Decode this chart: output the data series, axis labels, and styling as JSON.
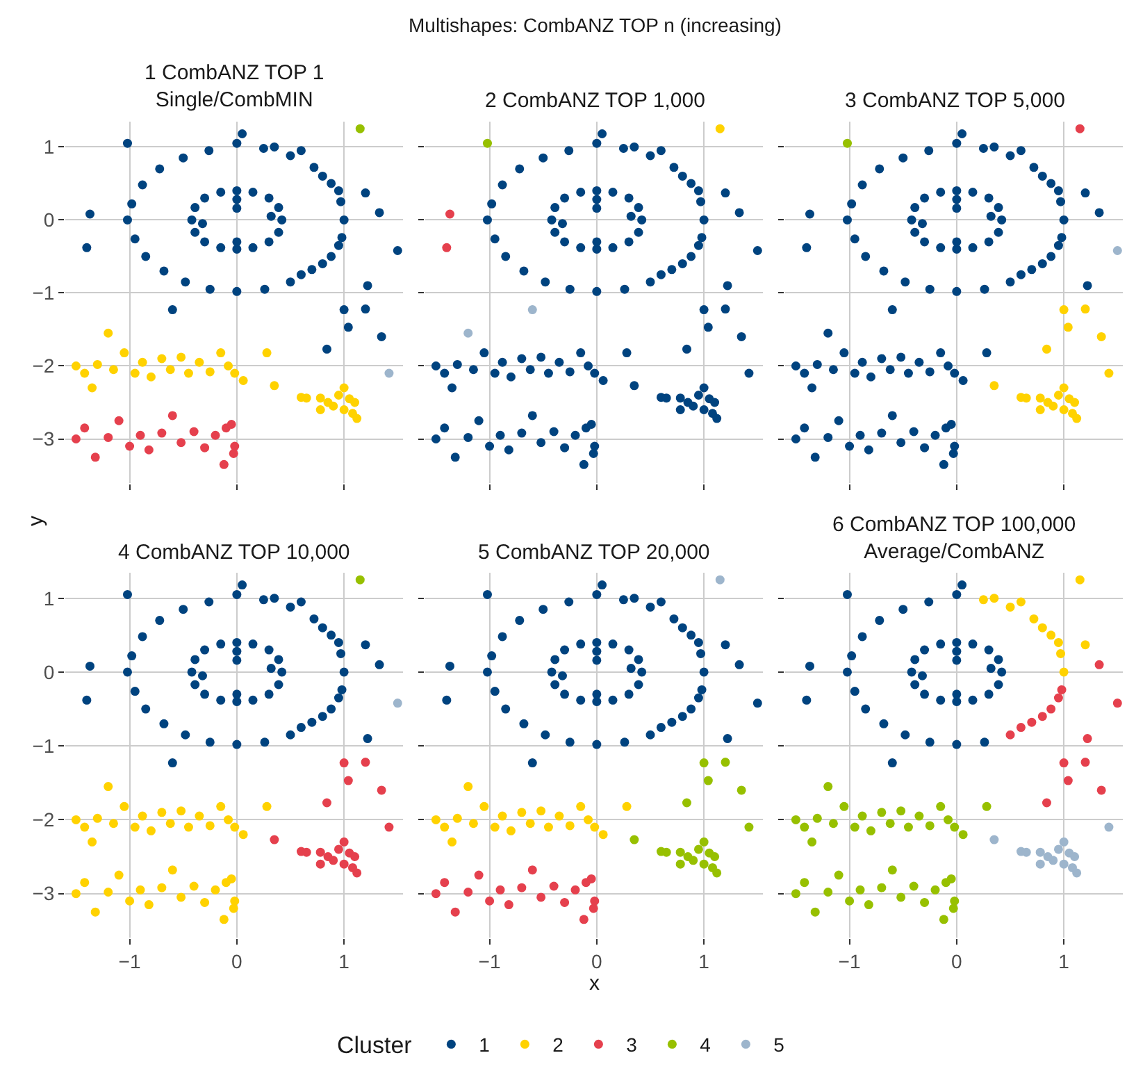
{
  "chart_data": [
    {
      "type": "scatter",
      "title": "1 CombANZ TOP 1\nSingle/CombMIN",
      "annotations": [
        "Multishapes: CombANZ TOP n (increasing)"
      ],
      "ylabel": "y",
      "legend": "bottom",
      "legend_title": "Cluster",
      "grid": true,
      "marker": "circle",
      "tick_labels": "y",
      "xlim": [
        -1.6,
        1.55
      ],
      "ylim": [
        -3.6,
        1.35
      ],
      "xticks": [
        -1,
        0,
        1
      ],
      "yticks": [
        -3,
        -2,
        -1,
        0,
        1
      ],
      "series": [
        {
          "name": "1",
          "color": "#00437f",
          "x": [
            0.0,
            -0.26,
            -0.5,
            -0.72,
            -0.88,
            -0.98,
            -1.02,
            -0.95,
            -0.85,
            -0.68,
            -0.48,
            -0.25,
            0.0,
            0.26,
            0.05,
            0.25,
            0.35,
            0.5,
            0.6,
            0.72,
            0.8,
            0.88,
            0.95,
            0.97,
            1.0,
            1.2,
            0.98,
            0.95,
            0.88,
            0.8,
            0.7,
            0.6,
            0.5,
            1.33,
            1.22,
            -1.4,
            -1.37,
            -1.02,
            0.42,
            0.39,
            0.3,
            0.15,
            0.0,
            -0.15,
            -0.3,
            -0.39,
            -0.42,
            -0.39,
            -0.3,
            -0.15,
            0.0,
            0.15,
            0.3,
            0.39,
            0.32,
            -0.32,
            0.0,
            0.0,
            0.0,
            1.5,
            1.0,
            1.2,
            1.04,
            1.35,
            0.84,
            -0.6
          ],
          "values": [
            1.05,
            0.95,
            0.85,
            0.7,
            0.48,
            0.22,
            0.0,
            -0.26,
            -0.5,
            -0.7,
            -0.85,
            -0.95,
            -0.98,
            -0.95,
            1.18,
            0.98,
            1.0,
            0.88,
            0.95,
            0.72,
            0.6,
            0.5,
            0.4,
            0.25,
            0.0,
            0.37,
            -0.24,
            -0.35,
            -0.5,
            -0.6,
            -0.68,
            -0.75,
            -0.85,
            0.1,
            -0.9,
            -0.38,
            0.08,
            1.05,
            0.0,
            0.17,
            0.3,
            0.38,
            0.4,
            0.38,
            0.3,
            0.17,
            0.0,
            -0.17,
            -0.3,
            -0.38,
            -0.4,
            -0.38,
            -0.3,
            -0.17,
            0.05,
            -0.05,
            0.28,
            -0.3,
            0.16,
            -0.42,
            -1.23,
            -1.22,
            -1.47,
            -1.6,
            -1.77,
            -1.23
          ]
        },
        {
          "name": "2",
          "color": "#ffd200",
          "x": [
            -1.5,
            -1.42,
            -1.35,
            -1.3,
            -1.15,
            -1.05,
            -0.95,
            -0.88,
            -0.8,
            -0.7,
            -0.62,
            -0.52,
            -0.45,
            -0.35,
            -0.25,
            -0.15,
            -0.08,
            -0.02,
            0.06,
            0.28,
            -1.2,
            0.95,
            1.0,
            1.05,
            1.1,
            0.9,
            1.0,
            1.08,
            0.78,
            0.6,
            0.65,
            0.78,
            1.12,
            0.85,
            0.35
          ],
          "values": [
            -2.0,
            -2.1,
            -2.3,
            -1.98,
            -2.05,
            -1.82,
            -2.1,
            -1.95,
            -2.15,
            -1.9,
            -2.05,
            -1.88,
            -2.1,
            -1.95,
            -2.08,
            -1.82,
            -2.0,
            -2.1,
            -2.2,
            -1.82,
            -1.55,
            -2.4,
            -2.3,
            -2.45,
            -2.5,
            -2.55,
            -2.6,
            -2.65,
            -2.6,
            -2.43,
            -2.44,
            -2.44,
            -2.72,
            -2.5,
            -2.27
          ]
        },
        {
          "name": "3",
          "color": "#e5404d",
          "x": [
            -1.5,
            -1.42,
            -1.32,
            -1.2,
            -1.1,
            -1.0,
            -0.9,
            -0.82,
            -0.7,
            -0.6,
            -0.52,
            -0.4,
            -0.3,
            -0.2,
            -0.12,
            -0.1,
            -0.05,
            -0.02,
            -0.03
          ],
          "values": [
            -3.0,
            -2.85,
            -3.25,
            -2.98,
            -2.75,
            -3.1,
            -2.95,
            -3.15,
            -2.92,
            -2.68,
            -3.05,
            -2.9,
            -3.12,
            -2.95,
            -3.35,
            -2.85,
            -2.8,
            -3.1,
            -3.2
          ]
        },
        {
          "name": "4",
          "color": "#97c000",
          "x": [
            1.15
          ],
          "values": [
            1.25
          ]
        },
        {
          "name": "5",
          "color": "#9db5cc",
          "x": [
            1.42
          ],
          "values": [
            -2.1
          ]
        }
      ]
    },
    {
      "type": "scatter",
      "title": "2 CombANZ TOP 1,000",
      "grid": true,
      "marker": "circle",
      "tick_labels": false,
      "xlim": [
        -1.6,
        1.55
      ],
      "ylim": [
        -3.6,
        1.35
      ],
      "xticks": [
        -1,
        0,
        1
      ],
      "yticks": [
        -3,
        -2,
        -1,
        0,
        1
      ],
      "series": [
        {
          "color": "#00437f",
          "x": [
            0.0,
            -0.26,
            -0.5,
            -0.72,
            -0.88,
            -0.98,
            -1.02,
            -0.95,
            -0.85,
            -0.68,
            -0.48,
            -0.25,
            0.0,
            0.26,
            0.05,
            0.25,
            0.35,
            0.5,
            0.6,
            0.72,
            0.8,
            0.88,
            0.95,
            0.97,
            1.0,
            1.2,
            0.98,
            0.95,
            0.88,
            0.8,
            0.7,
            0.6,
            0.5,
            1.33,
            1.22,
            0.42,
            0.39,
            0.3,
            0.15,
            0.0,
            -0.15,
            -0.3,
            -0.39,
            -0.42,
            -0.39,
            -0.3,
            -0.15,
            0.0,
            0.15,
            0.3,
            0.39,
            0.32,
            -0.32,
            0.0,
            0.0,
            0.0,
            1.5,
            -1.5,
            -1.42,
            -1.35,
            -1.3,
            -1.15,
            -1.05,
            -0.95,
            -0.88,
            -0.8,
            -0.7,
            -0.62,
            -0.52,
            -0.45,
            -0.35,
            -0.25,
            -0.15,
            -0.08,
            -0.02,
            0.06,
            0.28,
            -1.5,
            -1.42,
            -1.32,
            -1.2,
            -1.1,
            -1.0,
            -0.9,
            -0.82,
            -0.7,
            -0.6,
            -0.52,
            -0.4,
            -0.3,
            -0.2,
            -0.12,
            -0.1,
            -0.05,
            -0.02,
            -0.03,
            0.95,
            1.0,
            1.05,
            1.1,
            0.9,
            1.0,
            1.08,
            0.78,
            0.6,
            0.65,
            0.78,
            1.12,
            0.85,
            0.35,
            1.0,
            1.2,
            1.04,
            1.35,
            0.84,
            1.42
          ],
          "values": [
            1.05,
            0.95,
            0.85,
            0.7,
            0.48,
            0.22,
            0.0,
            -0.26,
            -0.5,
            -0.7,
            -0.85,
            -0.95,
            -0.98,
            -0.95,
            1.18,
            0.98,
            1.0,
            0.88,
            0.95,
            0.72,
            0.6,
            0.5,
            0.4,
            0.25,
            0.0,
            0.37,
            -0.24,
            -0.35,
            -0.5,
            -0.6,
            -0.68,
            -0.75,
            -0.85,
            0.1,
            -0.9,
            0.0,
            0.17,
            0.3,
            0.38,
            0.4,
            0.38,
            0.3,
            0.17,
            0.0,
            -0.17,
            -0.3,
            -0.38,
            -0.4,
            -0.38,
            -0.3,
            -0.17,
            0.05,
            -0.05,
            0.28,
            -0.3,
            0.16,
            -0.42,
            -2.0,
            -2.1,
            -2.3,
            -1.98,
            -2.05,
            -1.82,
            -2.1,
            -1.95,
            -2.15,
            -1.9,
            -2.05,
            -1.88,
            -2.1,
            -1.95,
            -2.08,
            -1.82,
            -2.0,
            -2.1,
            -2.2,
            -1.82,
            -3.0,
            -2.85,
            -3.25,
            -2.98,
            -2.75,
            -3.1,
            -2.95,
            -3.15,
            -2.92,
            -2.68,
            -3.05,
            -2.9,
            -3.12,
            -2.95,
            -3.35,
            -2.85,
            -2.8,
            -3.1,
            -3.2,
            -2.4,
            -2.3,
            -2.45,
            -2.5,
            -2.55,
            -2.6,
            -2.65,
            -2.6,
            -2.43,
            -2.44,
            -2.44,
            -2.72,
            -2.5,
            -2.27,
            -1.23,
            -1.22,
            -1.47,
            -1.6,
            -1.77,
            -2.1
          ]
        },
        {
          "color": "#ffd200",
          "x": [
            1.15
          ],
          "values": [
            1.25
          ]
        },
        {
          "color": "#e5404d",
          "x": [
            -1.4,
            -1.37
          ],
          "values": [
            -0.38,
            0.08
          ]
        },
        {
          "color": "#97c000",
          "x": [
            -1.02
          ],
          "values": [
            1.05
          ]
        },
        {
          "color": "#9db5cc",
          "x": [
            -0.6,
            -1.2
          ],
          "values": [
            -1.23,
            -1.55
          ]
        }
      ]
    },
    {
      "type": "scatter",
      "title": "3 CombANZ TOP 5,000",
      "grid": true,
      "marker": "circle",
      "tick_labels": false,
      "xlim": [
        -1.6,
        1.55
      ],
      "ylim": [
        -3.6,
        1.35
      ],
      "xticks": [
        -1,
        0,
        1
      ],
      "yticks": [
        -3,
        -2,
        -1,
        0,
        1
      ],
      "series": [
        {
          "color": "#00437f",
          "x": [
            0.0,
            -0.26,
            -0.5,
            -0.72,
            -0.88,
            -0.98,
            -1.02,
            -0.95,
            -0.85,
            -0.68,
            -0.48,
            -0.25,
            0.0,
            0.26,
            0.05,
            0.25,
            0.35,
            0.5,
            0.6,
            0.72,
            0.8,
            0.88,
            0.95,
            0.97,
            1.0,
            1.2,
            0.98,
            0.95,
            0.88,
            0.8,
            0.7,
            0.6,
            0.5,
            1.33,
            1.22,
            -1.4,
            -1.37,
            0.42,
            0.39,
            0.3,
            0.15,
            0.0,
            -0.15,
            -0.3,
            -0.39,
            -0.42,
            -0.39,
            -0.3,
            -0.15,
            0.0,
            0.15,
            0.3,
            0.39,
            0.32,
            -0.32,
            0.0,
            0.0,
            0.0,
            -1.5,
            -1.42,
            -1.35,
            -1.3,
            -1.15,
            -1.05,
            -0.95,
            -0.88,
            -0.8,
            -0.7,
            -0.62,
            -0.52,
            -0.45,
            -0.35,
            -0.25,
            -0.15,
            -0.08,
            -0.02,
            0.06,
            0.28,
            -1.5,
            -1.42,
            -1.32,
            -1.2,
            -1.1,
            -1.0,
            -0.9,
            -0.82,
            -0.7,
            -0.6,
            -0.52,
            -0.4,
            -0.3,
            -0.2,
            -0.12,
            -0.1,
            -0.05,
            -0.02,
            -0.03,
            -1.2,
            -0.6
          ],
          "values": [
            1.05,
            0.95,
            0.85,
            0.7,
            0.48,
            0.22,
            0.0,
            -0.26,
            -0.5,
            -0.7,
            -0.85,
            -0.95,
            -0.98,
            -0.95,
            1.18,
            0.98,
            1.0,
            0.88,
            0.95,
            0.72,
            0.6,
            0.5,
            0.4,
            0.25,
            0.0,
            0.37,
            -0.24,
            -0.35,
            -0.5,
            -0.6,
            -0.68,
            -0.75,
            -0.85,
            0.1,
            -0.9,
            -0.38,
            0.08,
            0.0,
            0.17,
            0.3,
            0.38,
            0.4,
            0.38,
            0.3,
            0.17,
            0.0,
            -0.17,
            -0.3,
            -0.38,
            -0.4,
            -0.38,
            -0.3,
            -0.17,
            0.05,
            -0.05,
            0.28,
            -0.3,
            0.16,
            -2.0,
            -2.1,
            -2.3,
            -1.98,
            -2.05,
            -1.82,
            -2.1,
            -1.95,
            -2.15,
            -1.9,
            -2.05,
            -1.88,
            -2.1,
            -1.95,
            -2.08,
            -1.82,
            -2.0,
            -2.1,
            -2.2,
            -1.82,
            -3.0,
            -2.85,
            -3.25,
            -2.98,
            -2.75,
            -3.1,
            -2.95,
            -3.15,
            -2.92,
            -2.68,
            -3.05,
            -2.9,
            -3.12,
            -2.95,
            -3.35,
            -2.85,
            -2.8,
            -3.1,
            -3.2,
            -1.55,
            -1.23
          ]
        },
        {
          "color": "#ffd200",
          "x": [
            0.95,
            1.0,
            1.05,
            1.1,
            0.9,
            1.0,
            1.08,
            0.78,
            0.6,
            0.65,
            0.78,
            1.12,
            0.85,
            0.35,
            1.0,
            1.2,
            1.04,
            1.35,
            0.84,
            1.42
          ],
          "values": [
            -2.4,
            -2.3,
            -2.45,
            -2.5,
            -2.55,
            -2.6,
            -2.65,
            -2.6,
            -2.43,
            -2.44,
            -2.44,
            -2.72,
            -2.5,
            -2.27,
            -1.23,
            -1.22,
            -1.47,
            -1.6,
            -1.77,
            -2.1
          ]
        },
        {
          "color": "#e5404d",
          "x": [
            1.15
          ],
          "values": [
            1.25
          ]
        },
        {
          "color": "#97c000",
          "x": [
            -1.02
          ],
          "values": [
            1.05
          ]
        },
        {
          "color": "#9db5cc",
          "x": [
            1.5
          ],
          "values": [
            -0.42
          ]
        }
      ]
    },
    {
      "type": "scatter",
      "title": "4 CombANZ TOP 10,000",
      "grid": true,
      "marker": "circle",
      "xlim": [
        -1.6,
        1.55
      ],
      "ylim": [
        -3.6,
        1.35
      ],
      "xticks": [
        -1,
        0,
        1
      ],
      "yticks": [
        -3,
        -2,
        -1,
        0,
        1
      ],
      "series": [
        {
          "color": "#00437f",
          "x": [
            0.0,
            -0.26,
            -0.5,
            -0.72,
            -0.88,
            -0.98,
            -1.02,
            -0.95,
            -0.85,
            -0.68,
            -0.48,
            -0.25,
            0.0,
            0.26,
            0.05,
            0.25,
            0.35,
            0.5,
            0.6,
            0.72,
            0.8,
            0.88,
            0.95,
            0.97,
            1.0,
            1.2,
            0.98,
            0.95,
            0.88,
            0.8,
            0.7,
            0.6,
            0.5,
            1.33,
            1.22,
            -1.4,
            -1.37,
            -1.02,
            0.42,
            0.39,
            0.3,
            0.15,
            0.0,
            -0.15,
            -0.3,
            -0.39,
            -0.42,
            -0.39,
            -0.3,
            -0.15,
            0.0,
            0.15,
            0.3,
            0.39,
            0.32,
            -0.32,
            0.0,
            0.0,
            0.0,
            -0.6
          ],
          "values": [
            1.05,
            0.95,
            0.85,
            0.7,
            0.48,
            0.22,
            0.0,
            -0.26,
            -0.5,
            -0.7,
            -0.85,
            -0.95,
            -0.98,
            -0.95,
            1.18,
            0.98,
            1.0,
            0.88,
            0.95,
            0.72,
            0.6,
            0.5,
            0.4,
            0.25,
            0.0,
            0.37,
            -0.24,
            -0.35,
            -0.5,
            -0.6,
            -0.68,
            -0.75,
            -0.85,
            0.1,
            -0.9,
            -0.38,
            0.08,
            1.05,
            0.0,
            0.17,
            0.3,
            0.38,
            0.4,
            0.38,
            0.3,
            0.17,
            0.0,
            -0.17,
            -0.3,
            -0.38,
            -0.4,
            -0.38,
            -0.3,
            -0.17,
            0.05,
            -0.05,
            0.28,
            -0.3,
            0.16,
            -1.23
          ]
        },
        {
          "color": "#ffd200",
          "x": [
            -1.5,
            -1.42,
            -1.35,
            -1.3,
            -1.15,
            -1.05,
            -0.95,
            -0.88,
            -0.8,
            -0.7,
            -0.62,
            -0.52,
            -0.45,
            -0.35,
            -0.25,
            -0.15,
            -0.08,
            -0.02,
            0.06,
            0.28,
            -1.2,
            -1.5,
            -1.42,
            -1.32,
            -1.2,
            -1.1,
            -1.0,
            -0.9,
            -0.82,
            -0.7,
            -0.6,
            -0.52,
            -0.4,
            -0.3,
            -0.2,
            -0.12,
            -0.1,
            -0.05,
            -0.02,
            -0.03
          ],
          "values": [
            -2.0,
            -2.1,
            -2.3,
            -1.98,
            -2.05,
            -1.82,
            -2.1,
            -1.95,
            -2.15,
            -1.9,
            -2.05,
            -1.88,
            -2.1,
            -1.95,
            -2.08,
            -1.82,
            -2.0,
            -2.1,
            -2.2,
            -1.82,
            -1.55,
            -3.0,
            -2.85,
            -3.25,
            -2.98,
            -2.75,
            -3.1,
            -2.95,
            -3.15,
            -2.92,
            -2.68,
            -3.05,
            -2.9,
            -3.12,
            -2.95,
            -3.35,
            -2.85,
            -2.8,
            -3.1,
            -3.2
          ]
        },
        {
          "color": "#e5404d",
          "x": [
            0.95,
            1.0,
            1.05,
            1.1,
            0.9,
            1.0,
            1.08,
            0.78,
            0.6,
            0.65,
            0.78,
            1.12,
            0.85,
            0.35,
            1.0,
            1.2,
            1.04,
            1.35,
            0.84,
            1.42
          ],
          "values": [
            -2.4,
            -2.3,
            -2.45,
            -2.5,
            -2.55,
            -2.6,
            -2.65,
            -2.6,
            -2.43,
            -2.44,
            -2.44,
            -2.72,
            -2.5,
            -2.27,
            -1.23,
            -1.22,
            -1.47,
            -1.6,
            -1.77,
            -2.1
          ]
        },
        {
          "color": "#97c000",
          "x": [
            1.15
          ],
          "values": [
            1.25
          ]
        },
        {
          "color": "#9db5cc",
          "x": [
            1.5
          ],
          "values": [
            -0.42
          ]
        }
      ]
    },
    {
      "type": "scatter",
      "title": "5 CombANZ TOP 20,000",
      "xlabel": "x",
      "grid": true,
      "marker": "circle",
      "tick_labels": "x",
      "xlim": [
        -1.6,
        1.55
      ],
      "ylim": [
        -3.6,
        1.35
      ],
      "xticks": [
        -1,
        0,
        1
      ],
      "yticks": [
        -3,
        -2,
        -1,
        0,
        1
      ],
      "series": [
        {
          "color": "#00437f",
          "x": [
            0.0,
            -0.26,
            -0.5,
            -0.72,
            -0.88,
            -0.98,
            -1.02,
            -0.95,
            -0.85,
            -0.68,
            -0.48,
            -0.25,
            0.0,
            0.26,
            0.05,
            0.25,
            0.35,
            0.5,
            0.6,
            0.72,
            0.8,
            0.88,
            0.95,
            0.97,
            1.0,
            1.2,
            0.98,
            0.95,
            0.88,
            0.8,
            0.7,
            0.6,
            0.5,
            1.33,
            1.22,
            -1.4,
            -1.37,
            -1.02,
            0.42,
            0.39,
            0.3,
            0.15,
            0.0,
            -0.15,
            -0.3,
            -0.39,
            -0.42,
            -0.39,
            -0.3,
            -0.15,
            0.0,
            0.15,
            0.3,
            0.39,
            0.32,
            -0.32,
            0.0,
            0.0,
            0.0,
            -0.6,
            1.5
          ],
          "values": [
            1.05,
            0.95,
            0.85,
            0.7,
            0.48,
            0.22,
            0.0,
            -0.26,
            -0.5,
            -0.7,
            -0.85,
            -0.95,
            -0.98,
            -0.95,
            1.18,
            0.98,
            1.0,
            0.88,
            0.95,
            0.72,
            0.6,
            0.5,
            0.4,
            0.25,
            0.0,
            0.37,
            -0.24,
            -0.35,
            -0.5,
            -0.6,
            -0.68,
            -0.75,
            -0.85,
            0.1,
            -0.9,
            -0.38,
            0.08,
            1.05,
            0.0,
            0.17,
            0.3,
            0.38,
            0.4,
            0.38,
            0.3,
            0.17,
            0.0,
            -0.17,
            -0.3,
            -0.38,
            -0.4,
            -0.38,
            -0.3,
            -0.17,
            0.05,
            -0.05,
            0.28,
            -0.3,
            0.16,
            -1.23,
            -0.42
          ]
        },
        {
          "color": "#ffd200",
          "x": [
            -1.5,
            -1.42,
            -1.35,
            -1.3,
            -1.15,
            -1.05,
            -0.95,
            -0.88,
            -0.8,
            -0.7,
            -0.62,
            -0.52,
            -0.45,
            -0.35,
            -0.25,
            -0.15,
            -0.08,
            -0.02,
            0.06,
            0.28,
            -1.2
          ],
          "values": [
            -2.0,
            -2.1,
            -2.3,
            -1.98,
            -2.05,
            -1.82,
            -2.1,
            -1.95,
            -2.15,
            -1.9,
            -2.05,
            -1.88,
            -2.1,
            -1.95,
            -2.08,
            -1.82,
            -2.0,
            -2.1,
            -2.2,
            -1.82,
            -1.55
          ]
        },
        {
          "color": "#e5404d",
          "x": [
            -1.5,
            -1.42,
            -1.32,
            -1.2,
            -1.1,
            -1.0,
            -0.9,
            -0.82,
            -0.7,
            -0.6,
            -0.52,
            -0.4,
            -0.3,
            -0.2,
            -0.12,
            -0.1,
            -0.05,
            -0.02,
            -0.03
          ],
          "values": [
            -3.0,
            -2.85,
            -3.25,
            -2.98,
            -2.75,
            -3.1,
            -2.95,
            -3.15,
            -2.92,
            -2.68,
            -3.05,
            -2.9,
            -3.12,
            -2.95,
            -3.35,
            -2.85,
            -2.8,
            -3.1,
            -3.2
          ]
        },
        {
          "color": "#97c000",
          "x": [
            0.95,
            1.0,
            1.05,
            1.1,
            0.9,
            1.0,
            1.08,
            0.78,
            0.6,
            0.65,
            0.78,
            1.12,
            0.85,
            0.35,
            1.0,
            1.2,
            1.04,
            1.35,
            0.84,
            1.42
          ],
          "values": [
            -2.4,
            -2.3,
            -2.45,
            -2.5,
            -2.55,
            -2.6,
            -2.65,
            -2.6,
            -2.43,
            -2.44,
            -2.44,
            -2.72,
            -2.5,
            -2.27,
            -1.23,
            -1.22,
            -1.47,
            -1.6,
            -1.77,
            -2.1
          ]
        },
        {
          "color": "#9db5cc",
          "x": [
            1.15
          ],
          "values": [
            1.25
          ]
        }
      ]
    },
    {
      "type": "scatter",
      "title": "6 CombANZ TOP 100,000\nAverage/CombANZ",
      "grid": true,
      "marker": "circle",
      "tick_labels": "x",
      "xlim": [
        -1.6,
        1.55
      ],
      "ylim": [
        -3.6,
        1.35
      ],
      "xticks": [
        -1,
        0,
        1
      ],
      "yticks": [
        -3,
        -2,
        -1,
        0,
        1
      ],
      "series": [
        {
          "color": "#00437f",
          "x": [
            0.0,
            -0.26,
            -0.5,
            -0.72,
            -0.88,
            -0.98,
            -1.02,
            -0.95,
            -0.85,
            -0.68,
            -0.48,
            -0.25,
            0.0,
            0.26,
            0.05,
            -1.4,
            -1.37,
            -1.02,
            0.42,
            0.39,
            0.3,
            0.15,
            0.0,
            -0.15,
            -0.3,
            -0.39,
            -0.42,
            -0.39,
            -0.3,
            -0.15,
            0.0,
            0.15,
            0.3,
            0.39,
            0.32,
            -0.32,
            0.0,
            0.0,
            0.0,
            -0.6
          ],
          "values": [
            1.05,
            0.95,
            0.85,
            0.7,
            0.48,
            0.22,
            0.0,
            -0.26,
            -0.5,
            -0.7,
            -0.85,
            -0.95,
            -0.98,
            -0.95,
            1.18,
            -0.38,
            0.08,
            1.05,
            0.0,
            0.17,
            0.3,
            0.38,
            0.4,
            0.38,
            0.3,
            0.17,
            0.0,
            -0.17,
            -0.3,
            -0.38,
            -0.4,
            -0.38,
            -0.3,
            -0.17,
            0.05,
            -0.05,
            0.28,
            -0.3,
            0.16,
            -1.23
          ]
        },
        {
          "color": "#ffd200",
          "x": [
            0.25,
            0.35,
            0.5,
            0.6,
            0.72,
            0.8,
            0.88,
            0.95,
            0.97,
            1.0,
            1.2,
            1.15
          ],
          "values": [
            0.98,
            1.0,
            0.88,
            0.95,
            0.72,
            0.6,
            0.5,
            0.4,
            0.25,
            0.0,
            0.37,
            1.25
          ]
        },
        {
          "color": "#e5404d",
          "x": [
            0.98,
            0.95,
            0.88,
            0.8,
            0.7,
            0.6,
            0.5,
            1.33,
            1.22,
            1.5,
            1.0,
            1.2,
            1.04,
            1.35,
            0.84
          ],
          "values": [
            -0.24,
            -0.35,
            -0.5,
            -0.6,
            -0.68,
            -0.75,
            -0.85,
            0.1,
            -0.9,
            -0.42,
            -1.23,
            -1.22,
            -1.47,
            -1.6,
            -1.77
          ]
        },
        {
          "color": "#97c000",
          "x": [
            -1.5,
            -1.42,
            -1.35,
            -1.3,
            -1.15,
            -1.05,
            -0.95,
            -0.88,
            -0.8,
            -0.7,
            -0.62,
            -0.52,
            -0.45,
            -0.35,
            -0.25,
            -0.15,
            -0.08,
            -0.02,
            0.06,
            0.28,
            -1.2,
            -1.5,
            -1.42,
            -1.32,
            -1.2,
            -1.1,
            -1.0,
            -0.9,
            -0.82,
            -0.7,
            -0.6,
            -0.52,
            -0.4,
            -0.3,
            -0.2,
            -0.12,
            -0.1,
            -0.05,
            -0.02,
            -0.03
          ],
          "values": [
            -2.0,
            -2.1,
            -2.3,
            -1.98,
            -2.05,
            -1.82,
            -2.1,
            -1.95,
            -2.15,
            -1.9,
            -2.05,
            -1.88,
            -2.1,
            -1.95,
            -2.08,
            -1.82,
            -2.0,
            -2.1,
            -2.2,
            -1.82,
            -1.55,
            -3.0,
            -2.85,
            -3.25,
            -2.98,
            -2.75,
            -3.1,
            -2.95,
            -3.15,
            -2.92,
            -2.68,
            -3.05,
            -2.9,
            -3.12,
            -2.95,
            -3.35,
            -2.85,
            -2.8,
            -3.1,
            -3.2
          ]
        },
        {
          "color": "#9db5cc",
          "x": [
            0.95,
            1.0,
            1.05,
            1.1,
            0.9,
            1.0,
            1.08,
            0.78,
            0.6,
            0.65,
            0.78,
            1.12,
            0.85,
            0.35,
            1.42
          ],
          "values": [
            -2.4,
            -2.3,
            -2.45,
            -2.5,
            -2.55,
            -2.6,
            -2.65,
            -2.6,
            -2.43,
            -2.44,
            -2.44,
            -2.72,
            -2.5,
            -2.27,
            -2.1
          ]
        }
      ]
    }
  ]
}
